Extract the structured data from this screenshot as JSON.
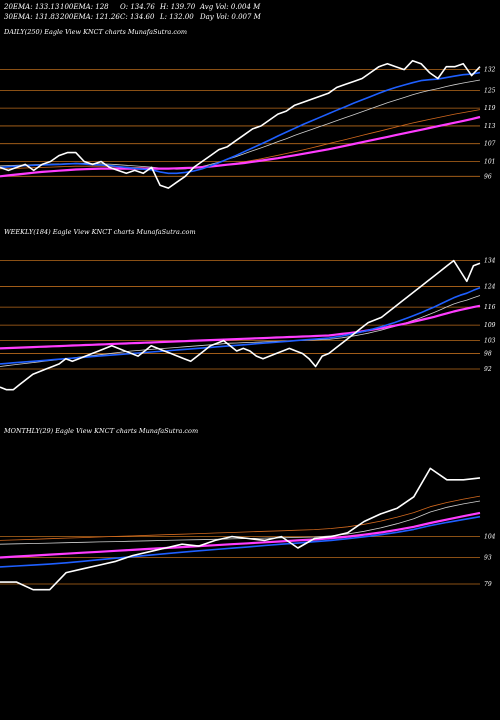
{
  "header": {
    "row1": [
      "20EMA: 133.13",
      "100EMA: 128",
      "O: 134.76",
      "H: 139.70",
      "Avg Vol: 0.004 M"
    ],
    "row2": [
      "30EMA: 131.83",
      "200EMA: 121.26",
      "C: 134.60",
      "L: 132.00",
      "Day Vol: 0.007 M"
    ]
  },
  "colors": {
    "background": "#000000",
    "price": "#ffffff",
    "level_line": "#b86a1c",
    "ema_blue": "#1e5fff",
    "ema_magenta": "#ff3cff",
    "ema_gray": "#d0d0d0",
    "ema_orange": "#d2691e"
  },
  "chart_data": [
    {
      "type": "line",
      "label": "DAILY(250) Eagle  View  KNCT charts MunafaSutra.com",
      "ylim": [
        88,
        142
      ],
      "levels": [
        132,
        125,
        119,
        113,
        107,
        101,
        96
      ],
      "series": [
        {
          "role": "price",
          "values": [
            99,
            98,
            99,
            100,
            98,
            100,
            101,
            103,
            104,
            104,
            101,
            100,
            101,
            99,
            98,
            97,
            98,
            97,
            99,
            93,
            92,
            94,
            96,
            99,
            101,
            103,
            105,
            106,
            108,
            110,
            112,
            113,
            115,
            117,
            118,
            120,
            121,
            122,
            123,
            124,
            126,
            127,
            128,
            129,
            131,
            133,
            134,
            133,
            132,
            135,
            134,
            131,
            129,
            133,
            133,
            134,
            130,
            133
          ]
        },
        {
          "role": "ema-blue",
          "values": [
            99,
            99.2,
            99.4,
            99.6,
            99.7,
            99.8,
            99.9,
            100,
            100.2,
            100.3,
            100.1,
            99.9,
            99.8,
            99.6,
            99.3,
            99,
            98.7,
            98.4,
            98.2,
            97.5,
            97,
            97,
            97.3,
            97.8,
            98.5,
            99.5,
            100.6,
            101.8,
            103,
            104.3,
            105.6,
            106.9,
            108.2,
            109.6,
            110.9,
            112.2,
            113.5,
            114.7,
            115.9,
            117.1,
            118.3,
            119.5,
            120.7,
            121.8,
            122.9,
            124,
            125.1,
            126,
            126.8,
            127.6,
            128.3,
            128.6,
            128.8,
            129.3,
            129.8,
            130.3,
            130.5,
            131
          ]
        },
        {
          "role": "ema-gray",
          "values": [
            99.5,
            99.6,
            99.7,
            99.8,
            99.9,
            100,
            100.1,
            100.2,
            100.3,
            100.4,
            100.4,
            100.3,
            100.2,
            100.1,
            99.9,
            99.7,
            99.5,
            99.3,
            99.1,
            98.8,
            98.5,
            98.4,
            98.5,
            98.8,
            99.3,
            100,
            100.8,
            101.7,
            102.6,
            103.6,
            104.6,
            105.6,
            106.6,
            107.7,
            108.7,
            109.8,
            110.8,
            111.8,
            112.8,
            113.8,
            114.8,
            115.8,
            116.8,
            117.8,
            118.8,
            119.8,
            120.8,
            121.7,
            122.6,
            123.5,
            124.3,
            125,
            125.6,
            126.3,
            126.9,
            127.5,
            128,
            128.5
          ]
        },
        {
          "role": "ema-orange",
          "values": [
            98.5,
            98.6,
            98.7,
            98.8,
            98.9,
            99,
            99.1,
            99.2,
            99.3,
            99.4,
            99.4,
            99.4,
            99.4,
            99.3,
            99.2,
            99.1,
            99,
            98.9,
            98.8,
            98.7,
            98.6,
            98.6,
            98.7,
            98.8,
            99,
            99.3,
            99.6,
            100,
            100.4,
            100.9,
            101.4,
            101.9,
            102.5,
            103.1,
            103.7,
            104.3,
            104.9,
            105.6,
            106.3,
            107,
            107.7,
            108.4,
            109.1,
            109.8,
            110.5,
            111.2,
            111.9,
            112.6,
            113.3,
            114,
            114.6,
            115.2,
            115.8,
            116.4,
            117,
            117.5,
            118,
            118.5
          ]
        },
        {
          "role": "ema-magenta",
          "values": [
            96,
            96.3,
            96.6,
            96.9,
            97.2,
            97.5,
            97.7,
            97.9,
            98.1,
            98.3,
            98.4,
            98.5,
            98.6,
            98.6,
            98.6,
            98.6,
            98.6,
            98.6,
            98.6,
            98.6,
            98.6,
            98.7,
            98.8,
            98.9,
            99.1,
            99.3,
            99.6,
            99.9,
            100.2,
            100.5,
            100.9,
            101.3,
            101.7,
            102.1,
            102.6,
            103.1,
            103.6,
            104.1,
            104.6,
            105.1,
            105.7,
            106.3,
            106.9,
            107.5,
            108.1,
            108.7,
            109.3,
            109.9,
            110.5,
            111.1,
            111.7,
            112.3,
            112.9,
            113.5,
            114.1,
            114.7,
            115.3,
            116
          ]
        }
      ]
    },
    {
      "type": "line",
      "label": "WEEKLY(184) Eagle  View  KNCT charts MunafaSutra.com",
      "ylim": [
        80,
        142
      ],
      "levels": [
        134,
        124,
        116,
        109,
        103,
        98,
        92
      ],
      "series": [
        {
          "role": "price",
          "values": [
            85,
            84,
            84,
            86,
            88,
            90,
            91,
            92,
            93,
            94,
            96,
            95,
            96,
            97,
            98,
            99,
            100,
            101,
            100,
            99,
            98,
            97,
            99,
            101,
            100,
            99,
            98,
            97,
            96,
            95,
            97,
            99,
            101,
            102,
            103,
            101,
            99,
            100,
            99,
            97,
            96,
            97,
            98,
            99,
            100,
            99,
            98,
            96,
            93,
            97,
            98,
            100,
            102,
            104,
            106,
            108,
            110,
            111,
            112,
            114,
            116,
            118,
            120,
            122,
            124,
            126,
            128,
            130,
            132,
            134,
            130,
            126,
            132,
            133
          ]
        },
        {
          "role": "ema-blue",
          "values": [
            94,
            94.2,
            94.4,
            94.6,
            94.8,
            95,
            95.2,
            95.4,
            95.6,
            95.8,
            96,
            96.2,
            96.4,
            96.6,
            96.8,
            97,
            97.2,
            97.4,
            97.6,
            97.8,
            98,
            98.2,
            98.4,
            98.6,
            98.8,
            99,
            99.2,
            99.4,
            99.6,
            99.8,
            100,
            100.2,
            100.4,
            100.6,
            100.8,
            101,
            101.2,
            101.4,
            101.6,
            101.8,
            102,
            102.2,
            102.4,
            102.6,
            102.8,
            103,
            103.2,
            103.4,
            103.6,
            103.8,
            104,
            104.4,
            104.8,
            105.3,
            105.8,
            106.4,
            107,
            107.7,
            108.4,
            109.2,
            110,
            110.9,
            111.8,
            112.8,
            113.8,
            114.9,
            116,
            117.2,
            118.4,
            119.6,
            120.6,
            121.4,
            122.5,
            123.5
          ]
        },
        {
          "role": "ema-gray",
          "values": [
            93,
            93.3,
            93.6,
            93.9,
            94.2,
            94.5,
            94.8,
            95.1,
            95.4,
            95.7,
            96,
            96.3,
            96.6,
            96.9,
            97.2,
            97.5,
            97.8,
            98.1,
            98.4,
            98.7,
            99,
            99.2,
            99.4,
            99.6,
            99.8,
            100,
            100.2,
            100.4,
            100.6,
            100.8,
            101,
            101.2,
            101.4,
            101.6,
            101.8,
            102,
            102.1,
            102.2,
            102.3,
            102.4,
            102.5,
            102.6,
            102.7,
            102.8,
            102.9,
            103,
            103.1,
            103.2,
            103.3,
            103.4,
            103.5,
            103.8,
            104.1,
            104.5,
            104.9,
            105.4,
            105.9,
            106.5,
            107.1,
            107.8,
            108.5,
            109.3,
            110.1,
            111,
            111.9,
            112.9,
            113.9,
            115,
            116.1,
            117.2,
            118,
            118.7,
            119.6,
            120.5
          ]
        },
        {
          "role": "ema-magenta",
          "values": [
            100,
            100.1,
            100.2,
            100.3,
            100.4,
            100.5,
            100.6,
            100.7,
            100.8,
            100.9,
            101,
            101.1,
            101.2,
            101.3,
            101.4,
            101.5,
            101.6,
            101.7,
            101.8,
            101.9,
            102,
            102.1,
            102.2,
            102.3,
            102.4,
            102.5,
            102.6,
            102.7,
            102.8,
            102.9,
            103,
            103.1,
            103.2,
            103.3,
            103.4,
            103.5,
            103.6,
            103.7,
            103.8,
            103.9,
            104,
            104.1,
            104.2,
            104.3,
            104.4,
            104.5,
            104.6,
            104.7,
            104.8,
            104.9,
            105,
            105.3,
            105.6,
            105.9,
            106.2,
            106.6,
            107,
            107.4,
            107.8,
            108.3,
            108.8,
            109.3,
            109.8,
            110.4,
            111,
            111.6,
            112.2,
            112.9,
            113.6,
            114.3,
            114.9,
            115.4,
            116,
            116.5
          ]
        }
      ]
    },
    {
      "type": "line",
      "label": "MONTHLY(29) Eagle  View  KNCT charts MunafaSutra.com",
      "ylim": [
        60,
        155
      ],
      "levels": [
        104,
        93,
        79
      ],
      "series": [
        {
          "role": "price",
          "values": [
            80,
            80,
            76,
            76,
            85,
            87,
            89,
            91,
            94,
            96,
            98,
            100,
            99,
            102,
            104,
            103,
            102,
            104,
            98,
            103,
            104,
            106,
            112,
            116,
            119,
            125,
            140,
            134,
            134,
            135
          ]
        },
        {
          "role": "ema-blue",
          "values": [
            88,
            88.5,
            89,
            89.5,
            90.2,
            91,
            91.8,
            92.6,
            93.4,
            94.2,
            95,
            95.8,
            96.5,
            97.2,
            97.9,
            98.6,
            99.3,
            100,
            100.6,
            101.3,
            102,
            102.9,
            103.9,
            105,
            106.3,
            107.8,
            109.8,
            111.5,
            113,
            114.5
          ]
        },
        {
          "role": "ema-gray",
          "values": [
            100,
            100.2,
            100.4,
            100.6,
            100.8,
            101,
            101.2,
            101.4,
            101.6,
            101.8,
            102,
            102.2,
            102.4,
            102.6,
            102.8,
            103,
            103.2,
            103.4,
            103.6,
            103.8,
            104.4,
            105.4,
            106.8,
            108.6,
            110.8,
            113.4,
            117,
            119.5,
            121.3,
            122.8
          ]
        },
        {
          "role": "ema-orange",
          "values": [
            102,
            102.3,
            102.6,
            102.9,
            103.2,
            103.5,
            103.8,
            104.1,
            104.4,
            104.7,
            105,
            105.3,
            105.6,
            105.9,
            106.2,
            106.5,
            106.8,
            107.1,
            107.4,
            107.7,
            108.3,
            109.2,
            110.5,
            112.2,
            114.3,
            116.7,
            119.8,
            122,
            123.8,
            125.4
          ]
        },
        {
          "role": "ema-magenta",
          "values": [
            93,
            93.5,
            94,
            94.5,
            95,
            95.5,
            96,
            96.5,
            97,
            97.5,
            98,
            98.5,
            99,
            99.5,
            100,
            100.5,
            101,
            101.5,
            102,
            102.5,
            103.2,
            104,
            105,
            106.2,
            107.6,
            109.2,
            111.2,
            113,
            114.8,
            116.5
          ]
        }
      ]
    }
  ]
}
